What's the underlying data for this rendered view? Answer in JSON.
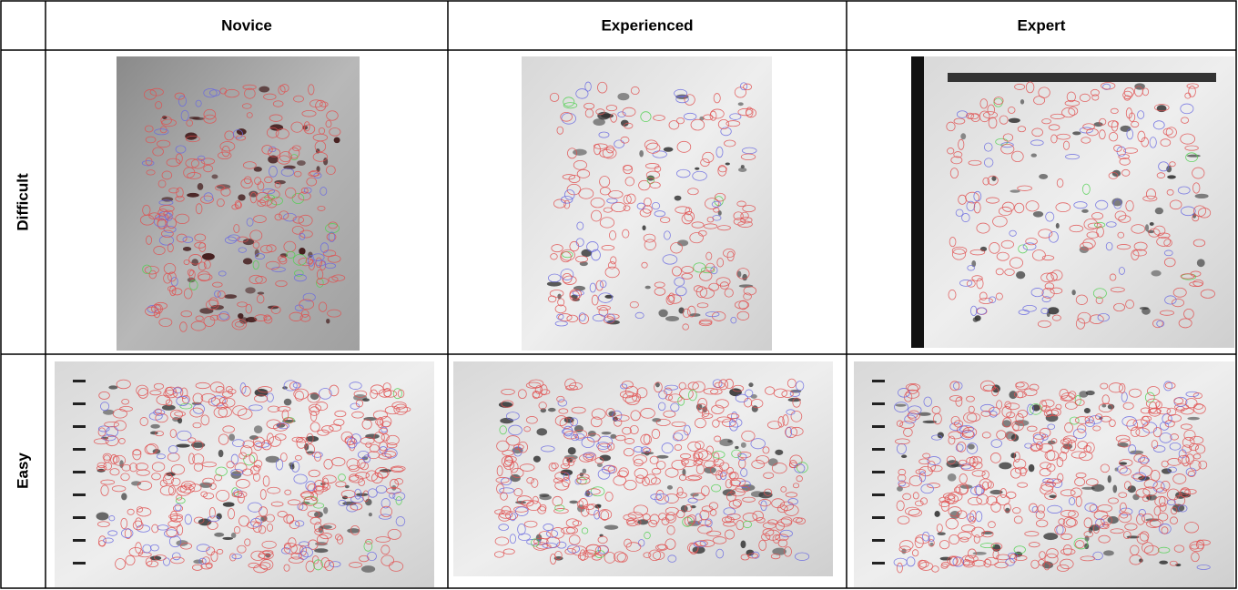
{
  "table": {
    "header": [
      "Novice",
      "Experienced",
      "Expert"
    ],
    "rows": [
      {
        "label": "Difficult"
      },
      {
        "label": "Easy"
      }
    ]
  }
}
